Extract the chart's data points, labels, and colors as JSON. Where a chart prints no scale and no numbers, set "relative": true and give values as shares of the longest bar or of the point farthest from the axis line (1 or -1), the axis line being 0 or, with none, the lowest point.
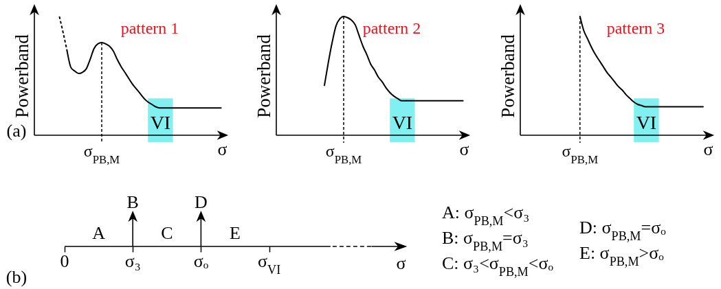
{
  "chart_data": [
    {
      "type": "line",
      "title": "pattern 1",
      "xlabel": "σ",
      "ylabel": "Powerband",
      "relative": true,
      "categories": [
        null,
        null,
        null,
        null,
        null,
        null,
        null,
        null,
        null,
        null,
        null,
        null,
        null,
        null,
        null,
        null,
        null,
        null,
        null,
        null,
        null,
        null,
        null,
        null,
        null,
        null,
        null,
        null,
        null,
        null,
        null,
        null,
        null,
        null,
        null,
        null,
        null,
        null,
        null,
        null,
        null,
        null,
        null,
        null,
        null,
        null,
        null,
        null,
        null,
        null
      ],
      "series": [
        {
          "color": "#000000",
          "line_style": "dashed",
          "values": [
            null,
            null,
            null,
            null,
            null,
            null,
            1,
            0.86,
            0.71,
            null,
            null,
            null,
            null,
            null,
            null,
            null,
            null,
            null,
            null,
            null,
            null,
            null,
            null,
            null,
            null,
            null,
            null,
            null,
            null,
            null,
            null,
            null,
            null,
            null,
            null,
            null,
            null,
            null,
            null,
            null,
            null,
            null,
            null,
            null,
            null,
            null,
            null,
            null,
            null,
            null
          ]
        },
        {
          "color": "#000000",
          "values": [
            null,
            null,
            null,
            null,
            null,
            null,
            null,
            null,
            0.71,
            0.57,
            0.54,
            0.52,
            0.53,
            0.56,
            0.64,
            0.73,
            0.77,
            0.78,
            0.77,
            0.75,
            0.71,
            0.64,
            0.58,
            0.53,
            0.48,
            0.43,
            0.39,
            0.35,
            0.31,
            0.28,
            0.26,
            0.24,
            0.23,
            0.23,
            0.23,
            0.23,
            0.23,
            0.23,
            0.23,
            0.23,
            0.23,
            0.23,
            0.23,
            0.23,
            0.23,
            0.23,
            0.23,
            0.23,
            0.23,
            null
          ]
        }
      ],
      "annotations": [
        "σ$_{PB,M}$",
        "VI",
        "(a)"
      ]
    },
    {
      "type": "line",
      "title": "pattern 2",
      "xlabel": "σ",
      "ylabel": "Powerband",
      "relative": true,
      "categories": [
        null,
        null,
        null,
        null,
        null,
        null,
        null,
        null,
        null,
        null,
        null,
        null,
        null,
        null,
        null,
        null,
        null,
        null,
        null,
        null,
        null,
        null,
        null,
        null,
        null,
        null,
        null,
        null,
        null,
        null,
        null,
        null,
        null,
        null,
        null,
        null,
        null,
        null,
        null,
        null,
        null,
        null,
        null,
        null,
        null,
        null,
        null,
        null,
        null,
        null
      ],
      "series": [
        {
          "color": "#000000",
          "values": [
            null,
            null,
            null,
            null,
            null,
            null,
            null,
            null,
            null,
            null,
            null,
            null,
            0.42,
            0.61,
            0.78,
            0.92,
            0.98,
            1,
            0.99,
            0.97,
            0.93,
            0.84,
            0.75,
            0.68,
            0.6,
            0.55,
            0.49,
            0.45,
            0.4,
            0.36,
            0.33,
            0.31,
            0.29,
            0.29,
            0.29,
            0.29,
            0.29,
            0.29,
            0.29,
            0.29,
            0.29,
            0.29,
            0.29,
            0.29,
            0.29,
            0.29,
            0.29,
            0.29,
            0.29,
            null
          ]
        }
      ],
      "annotations": [
        "σ$_{PB,M}$",
        "VI"
      ]
    },
    {
      "type": "line",
      "title": "pattern 3",
      "xlabel": "σ",
      "ylabel": "Powerband",
      "relative": true,
      "categories": [
        null,
        null,
        null,
        null,
        null,
        null,
        null,
        null,
        null,
        null,
        null,
        null,
        null,
        null,
        null,
        null,
        null,
        null,
        null,
        null,
        null,
        null,
        null,
        null,
        null,
        null,
        null,
        null,
        null,
        null,
        null,
        null,
        null,
        null,
        null,
        null,
        null,
        null,
        null,
        null,
        null,
        null,
        null,
        null,
        null,
        null,
        null,
        null,
        null,
        null
      ],
      "series": [
        {
          "color": "#000000",
          "values": [
            null,
            null,
            null,
            null,
            null,
            null,
            null,
            null,
            null,
            null,
            null,
            null,
            null,
            null,
            null,
            1,
            0.88,
            0.81,
            0.74,
            0.68,
            0.63,
            0.58,
            0.53,
            0.49,
            0.45,
            0.41,
            0.38,
            0.34,
            0.31,
            0.28,
            0.26,
            0.25,
            0.24,
            0.24,
            0.24,
            0.24,
            0.24,
            0.24,
            0.24,
            0.24,
            0.24,
            0.24,
            0.24,
            0.24,
            0.24,
            0.24,
            0.24,
            0.24,
            null,
            null
          ]
        }
      ],
      "annotations": [
        "σ$_{PB,M}$",
        "VI"
      ]
    },
    {
      "type": "other",
      "xlabel": "σ",
      "categories": [
        "0",
        "σ₃",
        "σₒ",
        "σ$_{VI}$"
      ],
      "annotations": [
        "(b)",
        "A",
        {
          "text": "B",
          "x": "σ₃"
        },
        "C",
        {
          "text": "D",
          "x": "σₒ"
        },
        "E"
      ]
    },
    {
      "type": "other",
      "annotations": [
        "A: σ$_{PB,M}$<σ₃",
        "B: σ$_{PB,M}$=σ₃",
        "C: σ₃<σ$_{PB,M}$<σₒ",
        "D: σ$_{PB,M}$=σₒ",
        "E: σ$_{PB,M}$>σₒ"
      ]
    }
  ]
}
